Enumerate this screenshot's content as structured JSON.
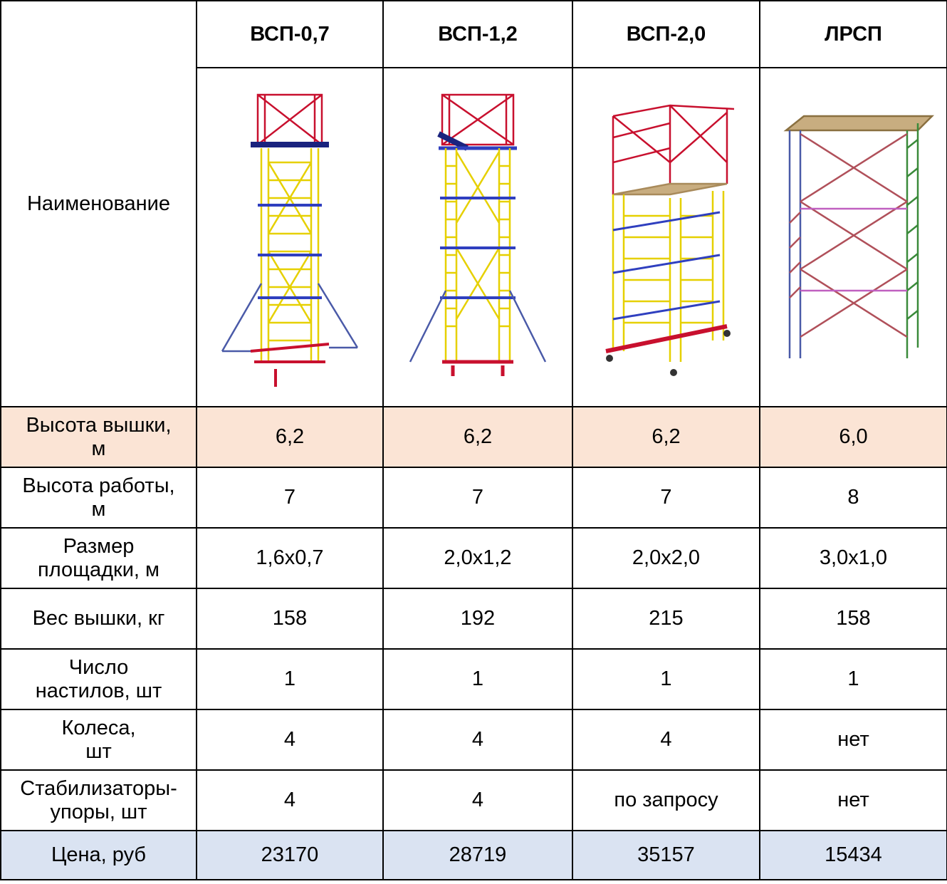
{
  "table": {
    "columns": [
      "ВСП-0,7",
      "ВСП-1,2",
      "ВСП-2,0",
      "ЛРСП"
    ],
    "name_label": "Наименование",
    "rows": [
      {
        "label": [
          "Высота вышки,",
          "м"
        ],
        "cells": [
          "6,2",
          "6,2",
          "6,2",
          "6,0"
        ]
      },
      {
        "label": [
          "Высота работы,",
          "м"
        ],
        "cells": [
          "7",
          "7",
          "7",
          "8"
        ]
      },
      {
        "label": [
          "Размер",
          "площадки, м"
        ],
        "cells": [
          "1,6x0,7",
          "2,0x1,2",
          "2,0x2,0",
          "3,0x1,0"
        ]
      },
      {
        "label": [
          "Вес вышки, кг"
        ],
        "cells": [
          "158",
          "192",
          "215",
          "158"
        ]
      },
      {
        "label": [
          "Число",
          "настилов, шт"
        ],
        "cells": [
          "1",
          "1",
          "1",
          "1"
        ]
      },
      {
        "label": [
          "Колеса,",
          "шт"
        ],
        "cells": [
          "4",
          "4",
          "4",
          "нет"
        ]
      },
      {
        "label": [
          "Стабилизаторы-",
          "упоры, шт"
        ],
        "cells": [
          "4",
          "4",
          "по запросу",
          "нет"
        ]
      },
      {
        "label": [
          "Цена, руб"
        ],
        "cells": [
          "23170",
          "28719",
          "35157",
          "15434"
        ]
      }
    ]
  }
}
